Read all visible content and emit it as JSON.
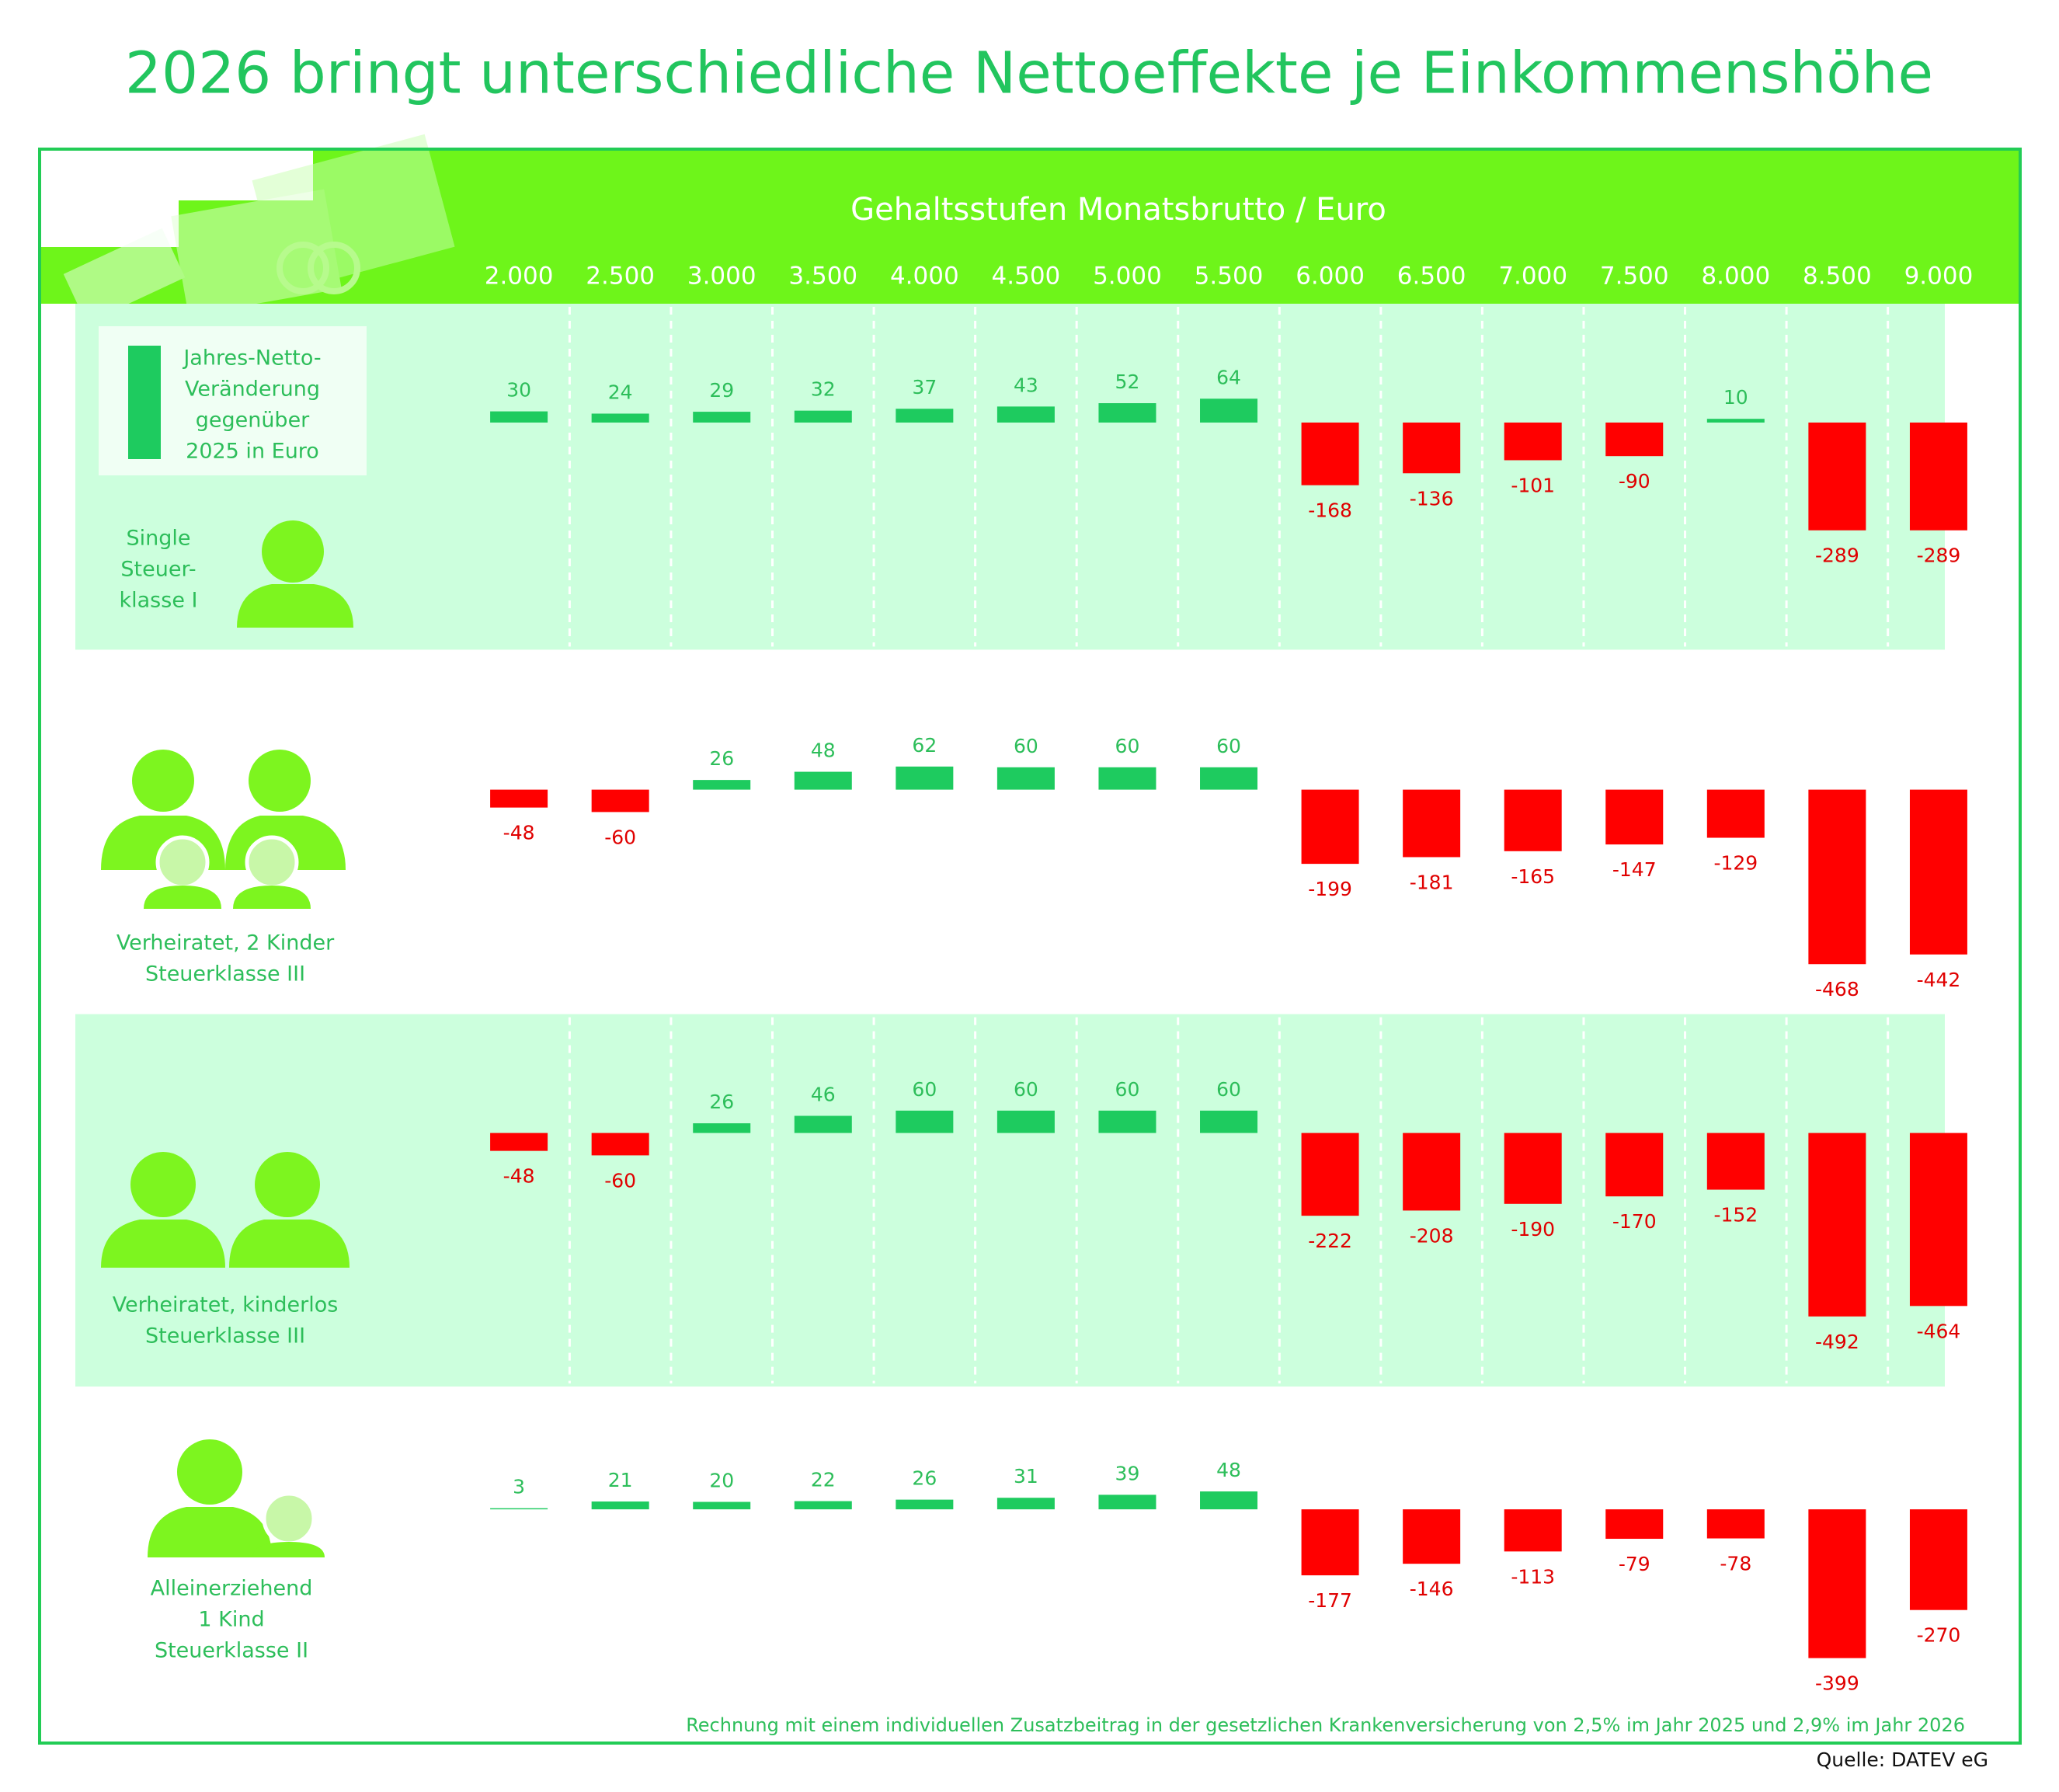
{
  "chart_data": {
    "type": "bar",
    "title": "2026 bringt unterschiedliche Nettoeffekte je Einkommenshöhe",
    "x_label": "Gehaltsstufen Monatsbrutto / Euro",
    "legend_lines": [
      "Jahres-Netto-",
      "Veränderung",
      "gegenüber",
      "2025 in Euro"
    ],
    "categories": [
      "2.000",
      "2.500",
      "3.000",
      "3.500",
      "4.000",
      "4.500",
      "5.000",
      "5.500",
      "6.000",
      "6.500",
      "7.000",
      "7.500",
      "8.000",
      "8.500",
      "9.000"
    ],
    "positive_color": "#1ecb5f",
    "negative_color": "#ff0000",
    "series": [
      {
        "name": [
          "Single",
          "Steuer-",
          "klasse I"
        ],
        "values": [
          30,
          24,
          29,
          32,
          37,
          43,
          52,
          64,
          -168,
          -136,
          -101,
          -90,
          10,
          -289,
          -289
        ]
      },
      {
        "name": [
          "Verheiratet, 2 Kinder",
          "Steuerklasse III"
        ],
        "values": [
          -48,
          -60,
          26,
          48,
          62,
          60,
          60,
          60,
          -199,
          -181,
          -165,
          -147,
          -129,
          -468,
          -442
        ]
      },
      {
        "name": [
          "Verheiratet, kinderlos",
          "Steuerklasse III"
        ],
        "values": [
          -48,
          -60,
          26,
          46,
          60,
          60,
          60,
          60,
          -222,
          -208,
          -190,
          -170,
          -152,
          -492,
          -464
        ]
      },
      {
        "name": [
          "Alleinerziehend",
          "1 Kind",
          "Steuerklasse II"
        ],
        "values": [
          3,
          21,
          20,
          22,
          26,
          31,
          39,
          48,
          -177,
          -146,
          -113,
          -79,
          -78,
          -399,
          -270
        ]
      }
    ],
    "note": "Rechnung mit einem individuellen Zusatzbeitrag in der gesetzlichen Krankenversicherung von 2,5% im Jahr 2025 und 2,9% im Jahr 2026",
    "source": "Quelle: DATEV eG"
  }
}
